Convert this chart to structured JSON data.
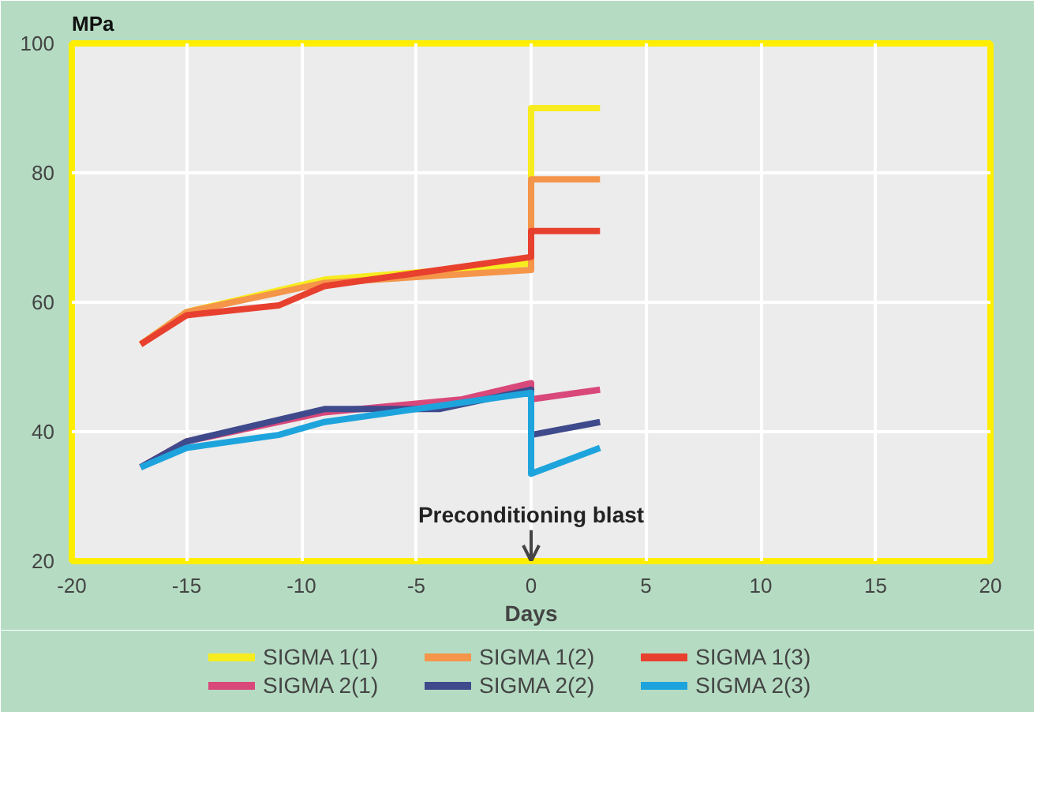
{
  "chart_data": {
    "type": "line",
    "xlabel": "Days",
    "ylabel": "MPa",
    "xlim": [
      -20,
      20
    ],
    "ylim": [
      20,
      100
    ],
    "xticks": [
      -20,
      -15,
      -10,
      -5,
      0,
      5,
      10,
      15,
      20
    ],
    "yticks": [
      20,
      40,
      60,
      80,
      100
    ],
    "grid": true,
    "legend": "bottom",
    "line_style": "solid",
    "annotations": [
      "Preconditioning blast"
    ],
    "series": [
      {
        "name": "SIGMA 1(1)",
        "color": "#f7ec1f",
        "x": [
          -17,
          -15,
          -9,
          0,
          0,
          3
        ],
        "values": [
          53.5,
          58.5,
          63.5,
          66,
          90,
          90
        ]
      },
      {
        "name": "SIGMA 1(2)",
        "color": "#f4954a",
        "x": [
          -17,
          -15,
          -9,
          0,
          0,
          3
        ],
        "values": [
          53.5,
          58.5,
          63,
          65,
          79,
          79
        ]
      },
      {
        "name": "SIGMA 1(3)",
        "color": "#e8402f",
        "x": [
          -17,
          -15,
          -11,
          -9,
          0,
          0,
          3
        ],
        "values": [
          53.5,
          58,
          59.5,
          62.5,
          67,
          71,
          71
        ]
      },
      {
        "name": "SIGMA 2(1)",
        "color": "#d9487a",
        "x": [
          -17,
          -15,
          -9,
          -3,
          0,
          0,
          3
        ],
        "values": [
          34.5,
          38.5,
          43,
          45,
          47.5,
          45,
          46.5
        ]
      },
      {
        "name": "SIGMA 2(2)",
        "color": "#3f4a8c",
        "x": [
          -17,
          -15,
          -9,
          -4,
          0,
          0,
          3
        ],
        "values": [
          34.5,
          38.5,
          43.5,
          43.5,
          46.5,
          39.5,
          41.5
        ]
      },
      {
        "name": "SIGMA 2(3)",
        "color": "#1ea4dc",
        "x": [
          -17,
          -15,
          -11,
          -9,
          0,
          0,
          3
        ],
        "values": [
          34.5,
          37.5,
          39.5,
          41.5,
          46,
          33.5,
          37.5
        ]
      }
    ]
  }
}
